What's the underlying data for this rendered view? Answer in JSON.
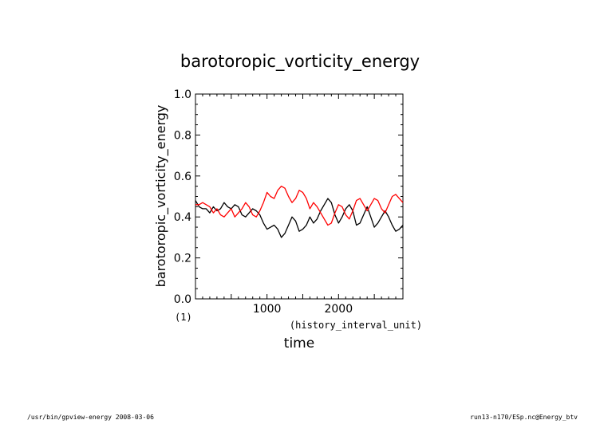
{
  "chart_data": {
    "type": "line",
    "title": "barotoropic_vorticity_energy",
    "ylabel": "barotoropic_vorticity_energy",
    "yunit": "(1)",
    "xlabel": "time",
    "xunit": "(history_interval_unit)",
    "xlim": [
      0,
      2900
    ],
    "ylim": [
      0.0,
      1.0
    ],
    "xticks": [
      1000,
      2000
    ],
    "xtick_labels": [
      "1000",
      "2000"
    ],
    "yticks": [
      0.0,
      0.2,
      0.4,
      0.6,
      0.8,
      1.0
    ],
    "ytick_labels": [
      "0.0",
      "0.2",
      "0.4",
      "0.6",
      "0.8",
      "1.0"
    ],
    "grid": false,
    "series": [
      {
        "color": "#000000",
        "x": [
          0,
          50,
          100,
          150,
          200,
          250,
          300,
          350,
          400,
          450,
          500,
          550,
          600,
          650,
          700,
          750,
          800,
          850,
          900,
          950,
          1000,
          1050,
          1100,
          1150,
          1200,
          1250,
          1300,
          1350,
          1400,
          1450,
          1500,
          1550,
          1600,
          1650,
          1700,
          1750,
          1800,
          1850,
          1900,
          1950,
          2000,
          2050,
          2100,
          2150,
          2200,
          2250,
          2300,
          2350,
          2400,
          2450,
          2500,
          2550,
          2600,
          2650,
          2700,
          2750,
          2800,
          2850,
          2900
        ],
        "values": [
          0.48,
          0.45,
          0.44,
          0.44,
          0.42,
          0.45,
          0.43,
          0.44,
          0.47,
          0.45,
          0.44,
          0.46,
          0.45,
          0.41,
          0.4,
          0.42,
          0.44,
          0.43,
          0.41,
          0.37,
          0.34,
          0.35,
          0.36,
          0.34,
          0.3,
          0.32,
          0.36,
          0.4,
          0.38,
          0.33,
          0.34,
          0.36,
          0.4,
          0.37,
          0.39,
          0.43,
          0.46,
          0.49,
          0.47,
          0.41,
          0.37,
          0.4,
          0.44,
          0.46,
          0.43,
          0.36,
          0.37,
          0.41,
          0.45,
          0.4,
          0.35,
          0.37,
          0.4,
          0.43,
          0.4,
          0.36,
          0.33,
          0.34,
          0.36
        ]
      },
      {
        "color": "#ff0000",
        "x": [
          0,
          50,
          100,
          150,
          200,
          250,
          300,
          350,
          400,
          450,
          500,
          550,
          600,
          650,
          700,
          750,
          800,
          850,
          900,
          950,
          1000,
          1050,
          1100,
          1150,
          1200,
          1250,
          1300,
          1350,
          1400,
          1450,
          1500,
          1550,
          1600,
          1650,
          1700,
          1750,
          1800,
          1850,
          1900,
          1950,
          2000,
          2050,
          2100,
          2150,
          2200,
          2250,
          2300,
          2350,
          2400,
          2450,
          2500,
          2550,
          2600,
          2650,
          2700,
          2750,
          2800,
          2850,
          2900
        ],
        "values": [
          0.46,
          0.46,
          0.47,
          0.46,
          0.45,
          0.42,
          0.44,
          0.41,
          0.4,
          0.42,
          0.44,
          0.4,
          0.42,
          0.44,
          0.47,
          0.45,
          0.41,
          0.4,
          0.43,
          0.47,
          0.52,
          0.5,
          0.49,
          0.53,
          0.55,
          0.54,
          0.5,
          0.47,
          0.49,
          0.53,
          0.52,
          0.49,
          0.44,
          0.47,
          0.45,
          0.42,
          0.39,
          0.36,
          0.37,
          0.42,
          0.46,
          0.45,
          0.41,
          0.39,
          0.43,
          0.48,
          0.49,
          0.46,
          0.43,
          0.46,
          0.49,
          0.48,
          0.44,
          0.42,
          0.46,
          0.5,
          0.51,
          0.49,
          0.47
        ]
      }
    ]
  },
  "footer": {
    "left": "/usr/bin/gpview-energy  2008-03-06",
    "right": "run13-n170/ESp.nc@Energy_btv"
  }
}
